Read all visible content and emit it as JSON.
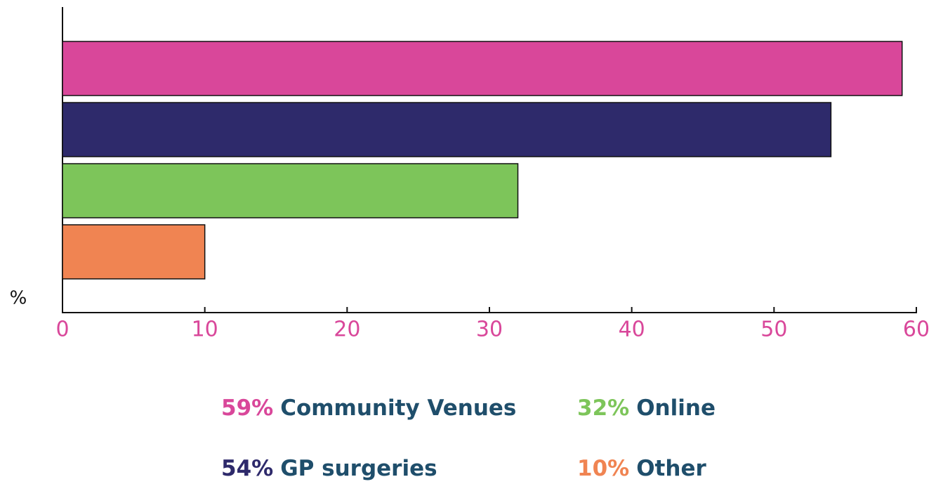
{
  "chart_data": {
    "type": "hbar",
    "x_label": "%",
    "categories": [
      "Community Venues",
      "GP surgeries",
      "Online",
      "Other"
    ],
    "values": [
      59,
      54,
      32,
      10
    ],
    "value_labels": [
      "59%",
      "54%",
      "32%",
      "10%"
    ],
    "colors": [
      "#d9479a",
      "#2e2a6b",
      "#7dc55a",
      "#f08452"
    ],
    "xlim": [
      0,
      60
    ],
    "xticks": [
      0,
      10,
      20,
      30,
      40,
      50,
      60
    ],
    "grid": false
  }
}
